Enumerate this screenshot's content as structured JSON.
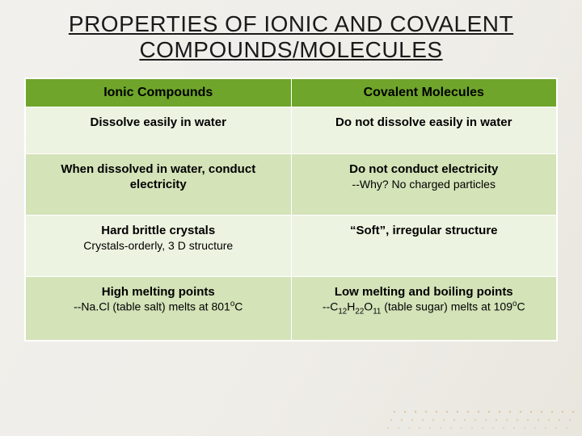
{
  "title": "PROPERTIES OF IONIC AND COVALENT COMPOUNDS/MOLECULES",
  "table": {
    "header_bg": "#6fa52a",
    "row_light_bg": "#edf3e1",
    "row_dark_bg": "#d4e3b8",
    "border_color": "#ffffff",
    "columns": [
      "Ionic Compounds",
      "Covalent Molecules"
    ],
    "rows": [
      {
        "shade": "light",
        "ionic": {
          "lead": "Dissolve easily in water",
          "sub": ""
        },
        "covalent": {
          "lead": "Do not dissolve easily in water",
          "sub": ""
        }
      },
      {
        "shade": "dark",
        "ionic": {
          "lead": "When dissolved in water, conduct electricity",
          "sub": ""
        },
        "covalent": {
          "lead": "Do not conduct electricity",
          "sub": "--Why?   No charged particles"
        }
      },
      {
        "shade": "light",
        "ionic": {
          "lead": "Hard brittle crystals",
          "sub": "Crystals-orderly, 3 D structure"
        },
        "covalent": {
          "lead": "“Soft”,  irregular structure",
          "sub": ""
        }
      },
      {
        "shade": "dark",
        "ionic": {
          "lead": "High melting points",
          "sub_html": "--Na.Cl (table salt) melts at 801<sup>o</sup>C"
        },
        "covalent": {
          "lead": "Low melting and boiling points",
          "sub_html": "--C<span class='subscript'>12</span>H<span class='subscript'>22</span>O<span class='subscript'>11</span> (table sugar) melts at 109<sup>o</sup>C"
        }
      }
    ]
  },
  "background": {
    "gradient_from": "#f2f0ec",
    "gradient_to": "#e9e6de",
    "dot_color": "#cfa96b"
  },
  "typography": {
    "title_fontsize": 28,
    "header_fontsize": 16,
    "cell_fontsize": 15
  }
}
